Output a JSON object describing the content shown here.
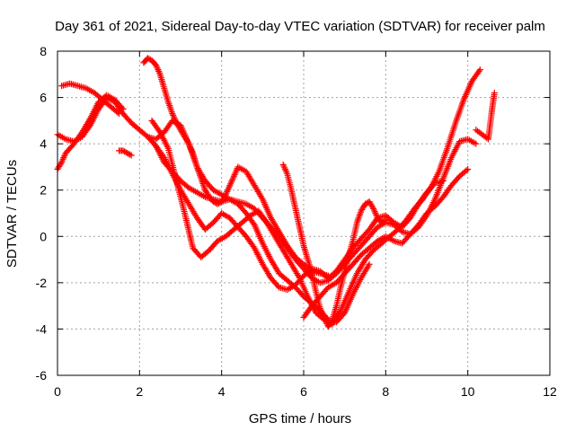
{
  "chart_data": {
    "type": "scatter",
    "title": "Day 361 of 2021, Sidereal Day-to-day VTEC variation (SDTVAR) for receiver palm",
    "xlabel": "GPS time / hours",
    "ylabel": "SDTVAR / TECUs",
    "xlim": [
      0,
      12
    ],
    "ylim": [
      -6,
      8
    ],
    "x_ticks": [
      0,
      2,
      4,
      6,
      8,
      10,
      12
    ],
    "y_ticks": [
      -6,
      -4,
      -2,
      0,
      2,
      4,
      6,
      8
    ],
    "x_tick_labels": [
      "0",
      "2",
      "4",
      "6",
      "8",
      "10",
      "12"
    ],
    "y_tick_labels": [
      "-6",
      "-4",
      "-2",
      "0",
      "2",
      "4",
      "6",
      "8"
    ],
    "grid": true,
    "marker": "+",
    "series": [
      {
        "color": "#ff0000",
        "tracks": [
          {
            "x": [
              0.0,
              0.2,
              0.4,
              0.6,
              0.8,
              1.0,
              1.2,
              1.4,
              1.6,
              1.8,
              2.0,
              2.2,
              2.4,
              2.6,
              2.8,
              3.0,
              3.2,
              3.4,
              3.6,
              3.8,
              4.0,
              4.2,
              4.4,
              4.6,
              4.8,
              5.0,
              5.2,
              5.4,
              5.6,
              5.8,
              6.0,
              6.2,
              6.4,
              6.6,
              6.8,
              7.0,
              7.2,
              7.4,
              7.6
            ],
            "y": [
              4.4,
              4.2,
              4.1,
              4.3,
              4.8,
              5.5,
              6.0,
              5.8,
              5.3,
              4.9,
              4.6,
              4.3,
              3.9,
              3.2,
              2.8,
              2.4,
              2.1,
              1.9,
              1.7,
              1.6,
              1.5,
              1.6,
              1.4,
              1.0,
              0.5,
              -0.3,
              -1.0,
              -1.6,
              -1.9,
              -2.2,
              -2.6,
              -2.9,
              -3.2,
              -3.6,
              -3.7,
              -3.3,
              -2.5,
              -1.8,
              -1.2
            ]
          },
          {
            "x": [
              0.0,
              0.1,
              0.2,
              0.4,
              0.6,
              0.8,
              1.0,
              1.2,
              1.4,
              1.6
            ],
            "y": [
              2.9,
              3.2,
              3.6,
              4.0,
              4.5,
              5.1,
              5.8,
              6.1,
              5.9,
              5.5
            ]
          },
          {
            "x": [
              0.1,
              0.3,
              0.5,
              0.7,
              0.9,
              1.1,
              1.3,
              1.5
            ],
            "y": [
              6.5,
              6.6,
              6.5,
              6.4,
              6.2,
              5.9,
              5.6,
              5.3
            ]
          },
          {
            "x": [
              1.5,
              1.6,
              1.7,
              1.8
            ],
            "y": [
              3.7,
              3.7,
              3.6,
              3.5
            ]
          },
          {
            "x": [
              2.1,
              2.2,
              2.3,
              2.4,
              2.5,
              2.6,
              2.7,
              2.8,
              2.9,
              3.0,
              3.1,
              3.2,
              3.3,
              3.4,
              3.5,
              3.6,
              3.7,
              3.8,
              3.9,
              4.0,
              4.1,
              4.2,
              4.3,
              4.4,
              4.6,
              4.8,
              5.0,
              5.2,
              5.4,
              5.6,
              5.8,
              6.0,
              6.2,
              6.4,
              6.6
            ],
            "y": [
              7.5,
              7.7,
              7.6,
              7.4,
              7.0,
              6.4,
              5.8,
              5.3,
              4.9,
              4.6,
              4.3,
              4.0,
              3.6,
              3.0,
              2.5,
              2.0,
              1.7,
              1.5,
              1.4,
              1.5,
              1.8,
              2.2,
              2.6,
              3.0,
              2.8,
              2.2,
              1.6,
              0.8,
              0.2,
              -0.4,
              -0.9,
              -1.2,
              -1.5,
              -1.6,
              -1.7
            ]
          },
          {
            "x": [
              2.2,
              2.4,
              2.6,
              2.8,
              3.0,
              3.2,
              3.4,
              3.6,
              3.8,
              4.0,
              4.2,
              4.4,
              4.6,
              4.8,
              5.0,
              5.2,
              5.4,
              5.6,
              5.8,
              6.0,
              6.2,
              6.4,
              6.6,
              6.8,
              7.0,
              7.2,
              7.4,
              7.6,
              7.8,
              8.0,
              8.2,
              8.4,
              8.6,
              8.8,
              9.0,
              9.2,
              9.4,
              9.6,
              9.8,
              10.0,
              10.2
            ],
            "y": [
              4.3,
              4.2,
              4.5,
              5.0,
              4.8,
              4.0,
              3.0,
              2.4,
              2.0,
              1.8,
              1.6,
              1.5,
              1.4,
              1.2,
              0.8,
              0.4,
              0.0,
              -0.5,
              -1.0,
              -1.4,
              -1.8,
              -2.0,
              -1.9,
              -1.6,
              -1.2,
              -0.8,
              -0.4,
              0.0,
              0.4,
              0.6,
              0.5,
              0.2,
              0.1,
              0.4,
              0.9,
              1.6,
              2.5,
              3.4,
              4.1,
              4.2,
              4.0
            ]
          },
          {
            "x": [
              2.3,
              2.5,
              2.7,
              2.9,
              3.1,
              3.3,
              3.5,
              3.7,
              3.9,
              4.1,
              4.3,
              4.5,
              4.7,
              4.9,
              5.1,
              5.3,
              5.5,
              5.7,
              5.9,
              6.1,
              6.3,
              6.5,
              6.7,
              6.9,
              7.1,
              7.3,
              7.5,
              7.7,
              7.9,
              8.1,
              8.3,
              8.5,
              8.7,
              8.9,
              9.1,
              9.3,
              9.5,
              9.7,
              9.9,
              10.1,
              10.3
            ],
            "y": [
              5.0,
              4.5,
              3.8,
              2.4,
              1.0,
              -0.5,
              -0.9,
              -0.6,
              -0.2,
              0.0,
              0.3,
              0.6,
              0.9,
              1.1,
              0.6,
              0.0,
              -0.6,
              -1.2,
              -1.8,
              -2.6,
              -3.3,
              -3.6,
              -3.8,
              -3.2,
              -2.4,
              -1.6,
              -1.0,
              -0.6,
              -0.3,
              0.0,
              0.3,
              0.7,
              1.2,
              1.6,
              2.1,
              2.8,
              3.8,
              4.9,
              5.9,
              6.7,
              7.2
            ]
          },
          {
            "x": [
              2.4,
              2.6,
              2.8,
              3.0,
              3.2,
              3.4,
              3.6,
              3.8,
              4.0,
              4.2,
              4.4,
              4.6,
              4.8,
              5.0,
              5.2,
              5.4,
              5.6,
              5.8,
              6.0,
              6.2,
              6.4,
              6.6,
              6.8,
              7.0,
              7.2,
              7.4,
              7.6,
              7.8,
              8.0,
              8.2,
              8.4,
              8.6,
              8.8,
              9.0,
              9.2,
              9.4
            ],
            "y": [
              3.9,
              3.4,
              2.7,
              2.0,
              1.4,
              0.8,
              0.3,
              0.6,
              1.0,
              0.8,
              0.4,
              0.0,
              -0.5,
              -1.2,
              -1.8,
              -2.2,
              -2.3,
              -2.1,
              -1.7,
              -1.4,
              -1.5,
              -1.8,
              -1.5,
              -1.0,
              -0.5,
              -0.1,
              0.3,
              0.8,
              0.9,
              0.6,
              0.4,
              0.8,
              1.4,
              1.9,
              2.3,
              2.4
            ]
          },
          {
            "x": [
              5.5,
              5.6,
              5.7,
              5.8,
              5.9,
              6.0,
              6.1,
              6.2,
              6.3,
              6.4,
              6.5,
              6.6,
              6.7,
              6.8,
              6.9,
              7.0,
              7.1,
              7.2,
              7.3,
              7.4,
              7.5,
              7.6,
              7.7,
              7.8,
              7.9,
              8.0
            ],
            "y": [
              3.1,
              2.7,
              2.0,
              1.2,
              0.4,
              -0.4,
              -1.0,
              -1.6,
              -2.4,
              -3.1,
              -3.5,
              -3.9,
              -3.6,
              -3.0,
              -2.2,
              -1.5,
              -0.8,
              -0.2,
              0.6,
              1.1,
              1.4,
              1.5,
              1.2,
              0.8,
              0.6,
              0.7
            ]
          },
          {
            "x": [
              6.0,
              6.2,
              6.4,
              6.6,
              6.8,
              7.0,
              7.2,
              7.4,
              7.6,
              7.8,
              8.0,
              8.2,
              8.4,
              8.6,
              8.8,
              9.0,
              9.2,
              9.4,
              9.6,
              9.8,
              10.0
            ],
            "y": [
              -3.5,
              -3.0,
              -2.6,
              -2.2,
              -2.0,
              -1.6,
              -1.2,
              -0.8,
              -0.5,
              -0.2,
              0.0,
              -0.2,
              -0.3,
              0.1,
              0.5,
              1.0,
              1.3,
              1.7,
              2.2,
              2.6,
              2.9
            ]
          },
          {
            "x": [
              10.2,
              10.5,
              10.55,
              10.6,
              10.65
            ],
            "y": [
              4.6,
              4.2,
              4.9,
              5.6,
              6.2
            ]
          }
        ]
      }
    ]
  }
}
